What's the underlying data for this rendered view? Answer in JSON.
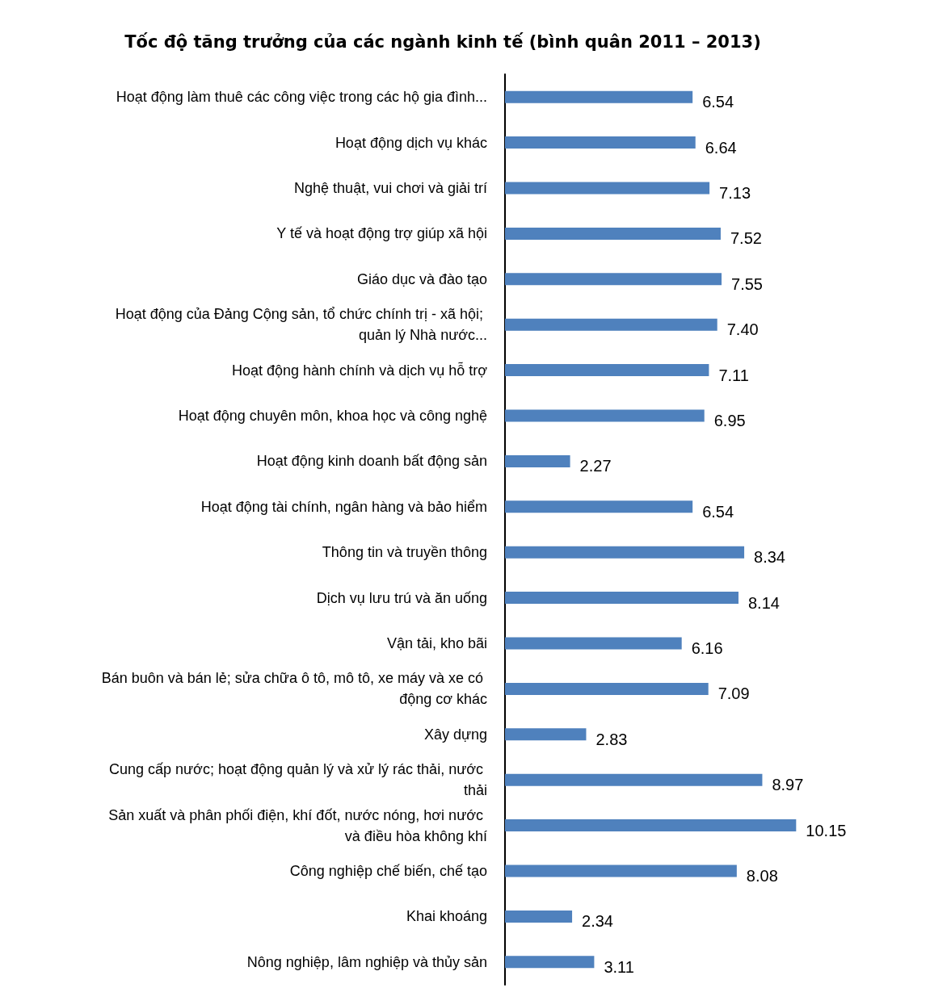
{
  "chart_data": {
    "type": "bar",
    "orientation": "horizontal",
    "title": "Tốc độ tăng trưởng của các ngành kinh tế (bình quân 2011 – 2013)",
    "categories": [
      "Hoạt động làm thuê các công việc trong các hộ gia đình...",
      "Hoạt động dịch vụ khác",
      "Nghệ thuật, vui chơi và giải trí",
      "Y tế và hoạt động trợ giúp xã hội",
      "Giáo dục và đào tạo",
      "Hoạt động của Đảng Cộng sản, tổ chức chính trị - xã hội; quản lý Nhà nước...",
      "Hoạt động hành chính và dịch vụ hỗ trợ",
      "Hoạt động chuyên môn, khoa học và công nghệ",
      "Hoạt động kinh doanh bất động sản",
      "Hoạt động tài chính, ngân hàng và bảo hiểm",
      "Thông tin và truyền thông",
      "Dịch vụ lưu trú và ăn uống",
      "Vận tải, kho bãi",
      "Bán buôn và bán lẻ; sửa chữa ô tô, mô tô, xe máy và xe có động cơ khác",
      "Xây dựng",
      "Cung cấp nước; hoạt động quản lý và xử lý rác thải, nước thải",
      "Sản xuất và phân phối điện, khí đốt, nước nóng, hơi nước và điều hòa không khí",
      "Công nghiệp chế biến, chế tạo",
      "Khai khoáng",
      "Nông nghiệp, lâm nghiệp và thủy sản"
    ],
    "values": [
      6.54,
      6.64,
      7.13,
      7.52,
      7.55,
      7.4,
      7.11,
      6.95,
      2.27,
      6.54,
      8.34,
      8.14,
      6.16,
      7.09,
      2.83,
      8.97,
      10.15,
      8.08,
      2.34,
      3.11
    ],
    "value_labels": [
      "6.54",
      "6.64",
      "7.13",
      "7.52",
      "7.55",
      "7.40",
      "7.11",
      "6.95",
      "2.27",
      "6.54",
      "8.34",
      "8.14",
      "6.16",
      "7.09",
      "2.83",
      "8.97",
      "10.15",
      "8.08",
      "2.34",
      "3.11"
    ],
    "color": "#4f81bd"
  }
}
